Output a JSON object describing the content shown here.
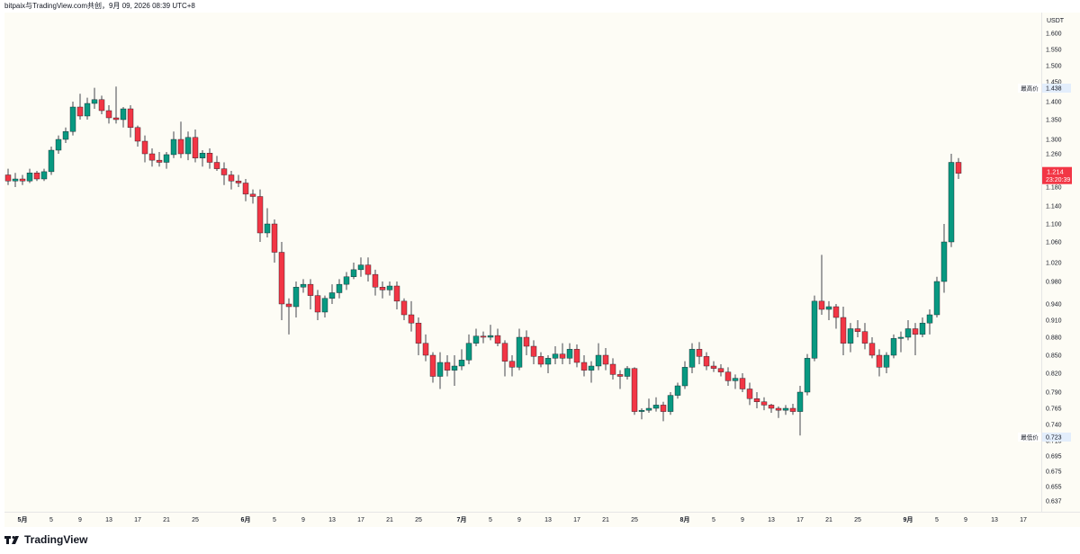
{
  "header": {
    "title": "bitpaix与TradingView.com共创，9月 09, 2026 08:39 UTC+8"
  },
  "footer": {
    "brand": "TradingView"
  },
  "chart_data": {
    "type": "candlestick",
    "currency_label": "USDT",
    "y_ticks": [
      "1.600",
      "1.550",
      "1.500",
      "1.450",
      "1.400",
      "1.350",
      "1.300",
      "1.260",
      "1.220",
      "1.180",
      "1.140",
      "1.100",
      "1.060",
      "1.020",
      "0.980",
      "0.940",
      "0.910",
      "0.880",
      "0.850",
      "0.820",
      "0.790",
      "0.765",
      "0.740",
      "0.715",
      "0.695",
      "0.675",
      "0.655",
      "0.637"
    ],
    "x_ticks": [
      {
        "label": "5月",
        "month": true
      },
      {
        "label": "5"
      },
      {
        "label": "9"
      },
      {
        "label": "13"
      },
      {
        "label": "17"
      },
      {
        "label": "21"
      },
      {
        "label": "25"
      },
      {
        "label": "6月",
        "month": true
      },
      {
        "label": "5"
      },
      {
        "label": "9"
      },
      {
        "label": "13"
      },
      {
        "label": "17"
      },
      {
        "label": "21"
      },
      {
        "label": "25"
      },
      {
        "label": "7月",
        "month": true
      },
      {
        "label": "5"
      },
      {
        "label": "9"
      },
      {
        "label": "13"
      },
      {
        "label": "17"
      },
      {
        "label": "21"
      },
      {
        "label": "25"
      },
      {
        "label": "8月",
        "month": true
      },
      {
        "label": "5"
      },
      {
        "label": "9"
      },
      {
        "label": "13"
      },
      {
        "label": "17"
      },
      {
        "label": "21"
      },
      {
        "label": "25"
      },
      {
        "label": "9月",
        "month": true
      },
      {
        "label": "5"
      },
      {
        "label": "9"
      },
      {
        "label": "13"
      },
      {
        "label": "17"
      }
    ],
    "high_marker": {
      "label": "最高价",
      "value": "1.438"
    },
    "low_marker": {
      "label": "最低价",
      "value": "0.723"
    },
    "last_price": {
      "value": "1.214",
      "countdown": "23:20:39"
    },
    "colors": {
      "up": "#089981",
      "down": "#f23645",
      "wick": "#131722"
    },
    "candles": [
      [
        1.21,
        1.225,
        1.185,
        1.195
      ],
      [
        1.195,
        1.215,
        1.18,
        1.2
      ],
      [
        1.2,
        1.21,
        1.185,
        1.195
      ],
      [
        1.195,
        1.225,
        1.19,
        1.215
      ],
      [
        1.215,
        1.22,
        1.195,
        1.2
      ],
      [
        1.2,
        1.225,
        1.195,
        1.218
      ],
      [
        1.218,
        1.28,
        1.21,
        1.27
      ],
      [
        1.27,
        1.31,
        1.26,
        1.3
      ],
      [
        1.3,
        1.33,
        1.29,
        1.32
      ],
      [
        1.32,
        1.4,
        1.31,
        1.385
      ],
      [
        1.385,
        1.42,
        1.35,
        1.36
      ],
      [
        1.36,
        1.41,
        1.35,
        1.395
      ],
      [
        1.395,
        1.435,
        1.38,
        1.405
      ],
      [
        1.405,
        1.415,
        1.365,
        1.375
      ],
      [
        1.375,
        1.39,
        1.34,
        1.355
      ],
      [
        1.355,
        1.438,
        1.34,
        1.35
      ],
      [
        1.35,
        1.385,
        1.33,
        1.38
      ],
      [
        1.38,
        1.39,
        1.305,
        1.33
      ],
      [
        1.33,
        1.335,
        1.28,
        1.295
      ],
      [
        1.295,
        1.31,
        1.24,
        1.26
      ],
      [
        1.26,
        1.275,
        1.23,
        1.245
      ],
      [
        1.245,
        1.265,
        1.23,
        1.24
      ],
      [
        1.24,
        1.265,
        1.225,
        1.258
      ],
      [
        1.258,
        1.32,
        1.25,
        1.3
      ],
      [
        1.3,
        1.345,
        1.25,
        1.26
      ],
      [
        1.26,
        1.32,
        1.245,
        1.305
      ],
      [
        1.305,
        1.325,
        1.24,
        1.25
      ],
      [
        1.25,
        1.27,
        1.23,
        1.262
      ],
      [
        1.262,
        1.275,
        1.225,
        1.24
      ],
      [
        1.24,
        1.255,
        1.22,
        1.225
      ],
      [
        1.225,
        1.24,
        1.185,
        1.21
      ],
      [
        1.21,
        1.22,
        1.175,
        1.195
      ],
      [
        1.195,
        1.21,
        1.18,
        1.19
      ],
      [
        1.19,
        1.2,
        1.15,
        1.165
      ],
      [
        1.165,
        1.175,
        1.145,
        1.16
      ],
      [
        1.16,
        1.175,
        1.06,
        1.08
      ],
      [
        1.08,
        1.135,
        1.07,
        1.1
      ],
      [
        1.1,
        1.11,
        1.02,
        1.04
      ],
      [
        1.04,
        1.06,
        0.91,
        0.94
      ],
      [
        0.94,
        0.95,
        0.885,
        0.935
      ],
      [
        0.935,
        0.98,
        0.915,
        0.97
      ],
      [
        0.97,
        0.985,
        0.96,
        0.975
      ],
      [
        0.975,
        0.985,
        0.93,
        0.955
      ],
      [
        0.955,
        0.965,
        0.91,
        0.925
      ],
      [
        0.925,
        0.955,
        0.915,
        0.95
      ],
      [
        0.95,
        0.975,
        0.94,
        0.96
      ],
      [
        0.96,
        0.985,
        0.95,
        0.975
      ],
      [
        0.975,
        1.0,
        0.965,
        0.99
      ],
      [
        0.99,
        1.02,
        0.985,
        1.005
      ],
      [
        1.005,
        1.03,
        0.99,
        1.015
      ],
      [
        1.015,
        1.03,
        0.98,
        0.995
      ],
      [
        0.995,
        1.005,
        0.955,
        0.97
      ],
      [
        0.97,
        0.98,
        0.95,
        0.965
      ],
      [
        0.965,
        0.98,
        0.955,
        0.972
      ],
      [
        0.972,
        0.98,
        0.93,
        0.945
      ],
      [
        0.945,
        0.95,
        0.91,
        0.92
      ],
      [
        0.92,
        0.945,
        0.89,
        0.905
      ],
      [
        0.905,
        0.915,
        0.85,
        0.87
      ],
      [
        0.87,
        0.885,
        0.84,
        0.85
      ],
      [
        0.85,
        0.855,
        0.805,
        0.815
      ],
      [
        0.815,
        0.855,
        0.795,
        0.838
      ],
      [
        0.838,
        0.85,
        0.815,
        0.825
      ],
      [
        0.825,
        0.85,
        0.8,
        0.832
      ],
      [
        0.832,
        0.86,
        0.825,
        0.842
      ],
      [
        0.842,
        0.885,
        0.835,
        0.87
      ],
      [
        0.87,
        0.895,
        0.865,
        0.882
      ],
      [
        0.882,
        0.89,
        0.87,
        0.88
      ],
      [
        0.88,
        0.902,
        0.875,
        0.883
      ],
      [
        0.883,
        0.895,
        0.865,
        0.87
      ],
      [
        0.87,
        0.875,
        0.815,
        0.84
      ],
      [
        0.84,
        0.85,
        0.815,
        0.83
      ],
      [
        0.83,
        0.895,
        0.825,
        0.88
      ],
      [
        0.88,
        0.892,
        0.85,
        0.865
      ],
      [
        0.865,
        0.875,
        0.835,
        0.848
      ],
      [
        0.848,
        0.855,
        0.83,
        0.835
      ],
      [
        0.835,
        0.85,
        0.82,
        0.845
      ],
      [
        0.845,
        0.865,
        0.835,
        0.852
      ],
      [
        0.852,
        0.87,
        0.835,
        0.845
      ],
      [
        0.845,
        0.87,
        0.835,
        0.86
      ],
      [
        0.86,
        0.868,
        0.83,
        0.838
      ],
      [
        0.838,
        0.85,
        0.815,
        0.825
      ],
      [
        0.825,
        0.84,
        0.805,
        0.832
      ],
      [
        0.832,
        0.87,
        0.825,
        0.85
      ],
      [
        0.85,
        0.862,
        0.825,
        0.835
      ],
      [
        0.835,
        0.845,
        0.81,
        0.818
      ],
      [
        0.818,
        0.825,
        0.795,
        0.815
      ],
      [
        0.815,
        0.832,
        0.81,
        0.828
      ],
      [
        0.828,
        0.83,
        0.755,
        0.76
      ],
      [
        0.76,
        0.765,
        0.748,
        0.762
      ],
      [
        0.762,
        0.78,
        0.758,
        0.765
      ],
      [
        0.765,
        0.782,
        0.76,
        0.77
      ],
      [
        0.77,
        0.775,
        0.745,
        0.76
      ],
      [
        0.76,
        0.79,
        0.755,
        0.785
      ],
      [
        0.785,
        0.805,
        0.78,
        0.8
      ],
      [
        0.8,
        0.84,
        0.795,
        0.83
      ],
      [
        0.83,
        0.87,
        0.82,
        0.86
      ],
      [
        0.86,
        0.872,
        0.835,
        0.848
      ],
      [
        0.848,
        0.855,
        0.825,
        0.832
      ],
      [
        0.832,
        0.84,
        0.822,
        0.828
      ],
      [
        0.828,
        0.835,
        0.815,
        0.822
      ],
      [
        0.822,
        0.83,
        0.8,
        0.808
      ],
      [
        0.808,
        0.818,
        0.795,
        0.812
      ],
      [
        0.812,
        0.82,
        0.79,
        0.795
      ],
      [
        0.795,
        0.805,
        0.77,
        0.78
      ],
      [
        0.78,
        0.79,
        0.765,
        0.775
      ],
      [
        0.775,
        0.782,
        0.762,
        0.77
      ],
      [
        0.77,
        0.772,
        0.758,
        0.765
      ],
      [
        0.765,
        0.768,
        0.75,
        0.762
      ],
      [
        0.762,
        0.77,
        0.755,
        0.765
      ],
      [
        0.765,
        0.772,
        0.755,
        0.76
      ],
      [
        0.76,
        0.8,
        0.723,
        0.79
      ],
      [
        0.79,
        0.852,
        0.785,
        0.845
      ],
      [
        0.845,
        0.955,
        0.84,
        0.945
      ],
      [
        0.945,
        1.035,
        0.92,
        0.93
      ],
      [
        0.93,
        0.945,
        0.91,
        0.935
      ],
      [
        0.935,
        0.94,
        0.895,
        0.915
      ],
      [
        0.915,
        0.935,
        0.85,
        0.87
      ],
      [
        0.87,
        0.905,
        0.855,
        0.895
      ],
      [
        0.895,
        0.91,
        0.88,
        0.89
      ],
      [
        0.89,
        0.905,
        0.86,
        0.87
      ],
      [
        0.87,
        0.88,
        0.845,
        0.85
      ],
      [
        0.85,
        0.86,
        0.815,
        0.83
      ],
      [
        0.83,
        0.855,
        0.82,
        0.85
      ],
      [
        0.85,
        0.885,
        0.845,
        0.878
      ],
      [
        0.878,
        0.89,
        0.855,
        0.88
      ],
      [
        0.88,
        0.91,
        0.875,
        0.895
      ],
      [
        0.895,
        0.905,
        0.85,
        0.885
      ],
      [
        0.885,
        0.915,
        0.88,
        0.905
      ],
      [
        0.905,
        0.93,
        0.885,
        0.92
      ],
      [
        0.92,
        0.99,
        0.915,
        0.98
      ],
      [
        0.98,
        1.1,
        0.96,
        1.06
      ],
      [
        1.06,
        1.26,
        1.05,
        1.24
      ],
      [
        1.24,
        1.25,
        1.2,
        1.214
      ]
    ]
  }
}
